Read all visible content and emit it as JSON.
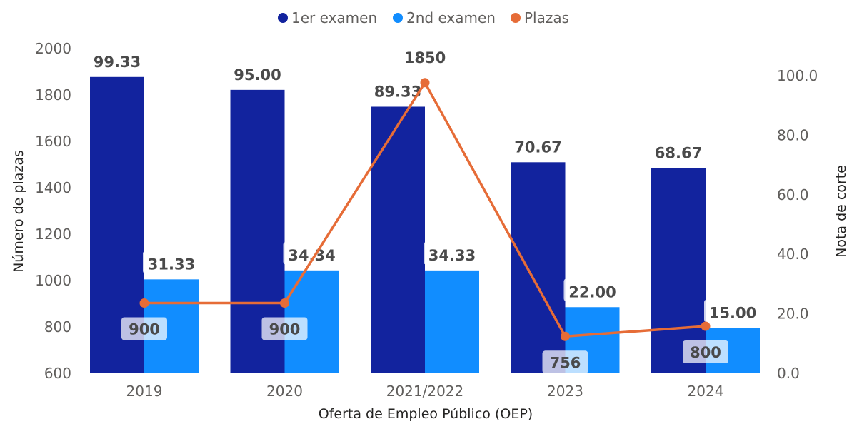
{
  "chart_data": {
    "type": "bar",
    "categories": [
      "2019",
      "2020",
      "2021/2022",
      "2023",
      "2024"
    ],
    "series": [
      {
        "name": "1er examen",
        "axis": "right",
        "type": "bar",
        "color": "#12239e",
        "values": [
          99.33,
          95.0,
          89.33,
          70.67,
          68.67
        ],
        "labels": [
          "99.33",
          "95.00",
          "89.33",
          "70.67",
          "68.67"
        ]
      },
      {
        "name": "2nd examen",
        "axis": "right",
        "type": "bar",
        "color": "#118dff",
        "values": [
          31.33,
          34.34,
          34.33,
          22.0,
          15.0
        ],
        "labels": [
          "31.33",
          "34.34",
          "34.33",
          "22.00",
          "15.00"
        ]
      },
      {
        "name": "Plazas",
        "axis": "left",
        "type": "line",
        "color": "#e66c37",
        "values": [
          900,
          900,
          1850,
          756,
          800
        ],
        "labels": [
          "900",
          "900",
          "1850",
          "756",
          "800"
        ]
      }
    ],
    "xlabel": "Oferta de Empleo Público (OEP)",
    "ylabel": "Número de plazas",
    "ylabel_right": "Nota de corte",
    "ylim": [
      600,
      2000
    ],
    "ylim_right": [
      0,
      100
    ],
    "yticks": [
      "600",
      "800",
      "1000",
      "1200",
      "1400",
      "1600",
      "1800",
      "2000"
    ],
    "yticks_right": [
      "0.0",
      "20.0",
      "40.0",
      "60.0",
      "80.0",
      "100.0"
    ],
    "legend_position": "top",
    "grid": false
  }
}
